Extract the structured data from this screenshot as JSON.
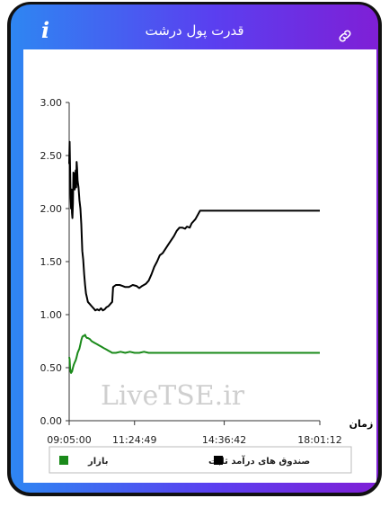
{
  "header": {
    "title": "قدرت پول درشت",
    "info_icon": "i",
    "link_icon": "link-icon"
  },
  "watermark": "LiveTSE.ir",
  "chart_data": {
    "type": "line",
    "title": "قدرت پول درشت",
    "xlabel": "زمان",
    "ylabel": "",
    "ylim": [
      0,
      3
    ],
    "y_ticks": [
      "0.00",
      "0.50",
      "1.00",
      "1.50",
      "2.00",
      "2.50",
      "3.00"
    ],
    "x_ticks": [
      "09:05:00",
      "11:24:49",
      "14:36:42",
      "18:01:12"
    ],
    "x_tick_positions": [
      0,
      139.82,
      331.7,
      536.2
    ],
    "xlim": [
      0,
      536.2
    ],
    "grid": false,
    "legend_position": "bottom",
    "series": [
      {
        "name": "صندوق های درآمد ثابت",
        "color": "#000000",
        "points": [
          [
            0,
            2.42
          ],
          [
            1,
            2.63
          ],
          [
            2,
            2.38
          ],
          [
            3,
            2.1
          ],
          [
            4,
            2.0
          ],
          [
            5,
            2.18
          ],
          [
            6,
            1.96
          ],
          [
            7,
            1.91
          ],
          [
            8,
            2.05
          ],
          [
            9,
            2.34
          ],
          [
            10,
            2.28
          ],
          [
            11,
            2.33
          ],
          [
            12,
            2.18
          ],
          [
            13,
            2.3
          ],
          [
            14,
            2.36
          ],
          [
            15,
            2.2
          ],
          [
            16,
            2.44
          ],
          [
            17,
            2.38
          ],
          [
            18,
            2.26
          ],
          [
            20,
            2.2
          ],
          [
            22,
            2.08
          ],
          [
            24,
            2.0
          ],
          [
            26,
            1.85
          ],
          [
            28,
            1.6
          ],
          [
            30,
            1.52
          ],
          [
            32,
            1.38
          ],
          [
            34,
            1.28
          ],
          [
            36,
            1.2
          ],
          [
            38,
            1.16
          ],
          [
            40,
            1.12
          ],
          [
            44,
            1.1
          ],
          [
            48,
            1.08
          ],
          [
            52,
            1.06
          ],
          [
            56,
            1.04
          ],
          [
            60,
            1.05
          ],
          [
            64,
            1.04
          ],
          [
            68,
            1.06
          ],
          [
            72,
            1.04
          ],
          [
            76,
            1.05
          ],
          [
            80,
            1.07
          ],
          [
            84,
            1.08
          ],
          [
            88,
            1.1
          ],
          [
            92,
            1.12
          ],
          [
            94,
            1.26
          ],
          [
            100,
            1.28
          ],
          [
            108,
            1.28
          ],
          [
            114,
            1.27
          ],
          [
            120,
            1.26
          ],
          [
            128,
            1.26
          ],
          [
            136,
            1.28
          ],
          [
            144,
            1.27
          ],
          [
            150,
            1.25
          ],
          [
            156,
            1.27
          ],
          [
            164,
            1.29
          ],
          [
            170,
            1.32
          ],
          [
            176,
            1.38
          ],
          [
            182,
            1.45
          ],
          [
            188,
            1.5
          ],
          [
            194,
            1.56
          ],
          [
            200,
            1.58
          ],
          [
            206,
            1.62
          ],
          [
            212,
            1.66
          ],
          [
            218,
            1.7
          ],
          [
            224,
            1.74
          ],
          [
            230,
            1.79
          ],
          [
            236,
            1.82
          ],
          [
            242,
            1.82
          ],
          [
            248,
            1.81
          ],
          [
            252,
            1.83
          ],
          [
            258,
            1.82
          ],
          [
            262,
            1.86
          ],
          [
            270,
            1.9
          ],
          [
            275,
            1.94
          ],
          [
            280,
            1.98
          ],
          [
            300,
            1.98
          ],
          [
            340,
            1.98
          ],
          [
            400,
            1.98
          ],
          [
            460,
            1.98
          ],
          [
            536.2,
            1.98
          ]
        ]
      },
      {
        "name": "بازار",
        "color": "#1a8a1a",
        "points": [
          [
            0,
            0.6
          ],
          [
            1,
            0.58
          ],
          [
            2,
            0.5
          ],
          [
            3,
            0.46
          ],
          [
            4,
            0.45
          ],
          [
            5,
            0.47
          ],
          [
            6,
            0.46
          ],
          [
            8,
            0.5
          ],
          [
            10,
            0.53
          ],
          [
            12,
            0.55
          ],
          [
            14,
            0.57
          ],
          [
            16,
            0.6
          ],
          [
            18,
            0.64
          ],
          [
            20,
            0.66
          ],
          [
            22,
            0.68
          ],
          [
            24,
            0.72
          ],
          [
            26,
            0.76
          ],
          [
            28,
            0.79
          ],
          [
            30,
            0.8
          ],
          [
            32,
            0.8
          ],
          [
            34,
            0.81
          ],
          [
            36,
            0.79
          ],
          [
            38,
            0.78
          ],
          [
            40,
            0.78
          ],
          [
            44,
            0.77
          ],
          [
            48,
            0.75
          ],
          [
            52,
            0.74
          ],
          [
            56,
            0.73
          ],
          [
            60,
            0.72
          ],
          [
            64,
            0.71
          ],
          [
            68,
            0.7
          ],
          [
            72,
            0.69
          ],
          [
            76,
            0.68
          ],
          [
            80,
            0.67
          ],
          [
            84,
            0.66
          ],
          [
            88,
            0.65
          ],
          [
            92,
            0.64
          ],
          [
            100,
            0.64
          ],
          [
            110,
            0.65
          ],
          [
            120,
            0.64
          ],
          [
            130,
            0.65
          ],
          [
            140,
            0.64
          ],
          [
            150,
            0.64
          ],
          [
            160,
            0.65
          ],
          [
            170,
            0.64
          ],
          [
            180,
            0.64
          ],
          [
            200,
            0.64
          ],
          [
            250,
            0.64
          ],
          [
            300,
            0.64
          ],
          [
            400,
            0.64
          ],
          [
            536.2,
            0.64
          ]
        ]
      }
    ]
  },
  "legend": {
    "items": [
      {
        "label": "صندوق های درآمد ثابت",
        "color": "#000000"
      },
      {
        "label": "بازار",
        "color": "#1a8a1a"
      }
    ]
  }
}
